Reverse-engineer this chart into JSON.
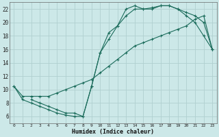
{
  "xlabel": "Humidex (Indice chaleur)",
  "background_color": "#cce8e8",
  "grid_color": "#b0d0d0",
  "line_color": "#1a6b5a",
  "xlim": [
    -0.5,
    23.5
  ],
  "ylim": [
    5.0,
    23.0
  ],
  "xticks": [
    0,
    1,
    2,
    3,
    4,
    5,
    6,
    7,
    8,
    9,
    10,
    11,
    12,
    13,
    14,
    15,
    16,
    17,
    18,
    19,
    20,
    21,
    22,
    23
  ],
  "yticks": [
    6,
    8,
    10,
    12,
    14,
    16,
    18,
    20,
    22
  ],
  "line1_x": [
    0,
    1,
    2,
    3,
    4,
    5,
    6,
    7,
    8,
    9,
    10,
    11,
    12,
    13,
    14,
    15,
    16,
    17,
    18,
    19,
    20,
    21,
    22,
    23
  ],
  "line1_y": [
    10.5,
    8.5,
    8.0,
    7.5,
    7.0,
    6.5,
    6.2,
    6.0,
    6.0,
    10.5,
    15.5,
    18.5,
    19.5,
    22.0,
    22.5,
    22.0,
    22.2,
    22.5,
    22.5,
    22.0,
    21.0,
    20.0,
    18.0,
    16.0
  ],
  "line2_x": [
    2,
    3,
    4,
    5,
    6,
    7,
    8,
    9,
    10,
    11,
    12,
    13,
    14,
    15,
    16,
    17,
    18,
    19,
    20,
    21,
    22,
    23
  ],
  "line2_y": [
    8.5,
    8.0,
    7.5,
    7.0,
    6.5,
    6.5,
    6.0,
    10.5,
    15.5,
    17.5,
    19.5,
    21.0,
    22.0,
    22.0,
    22.0,
    22.5,
    22.5,
    22.0,
    21.5,
    21.0,
    20.0,
    16.0
  ],
  "line3_x": [
    0,
    1,
    2,
    3,
    4,
    5,
    6,
    7,
    8,
    9,
    10,
    11,
    12,
    13,
    14,
    15,
    16,
    17,
    18,
    19,
    20,
    21,
    22,
    23
  ],
  "line3_y": [
    10.5,
    9.0,
    9.0,
    9.0,
    9.0,
    9.5,
    10.0,
    10.5,
    11.0,
    11.5,
    12.5,
    13.5,
    14.5,
    15.5,
    16.5,
    17.0,
    17.5,
    18.0,
    18.5,
    19.0,
    19.5,
    20.5,
    21.0,
    16.0
  ]
}
